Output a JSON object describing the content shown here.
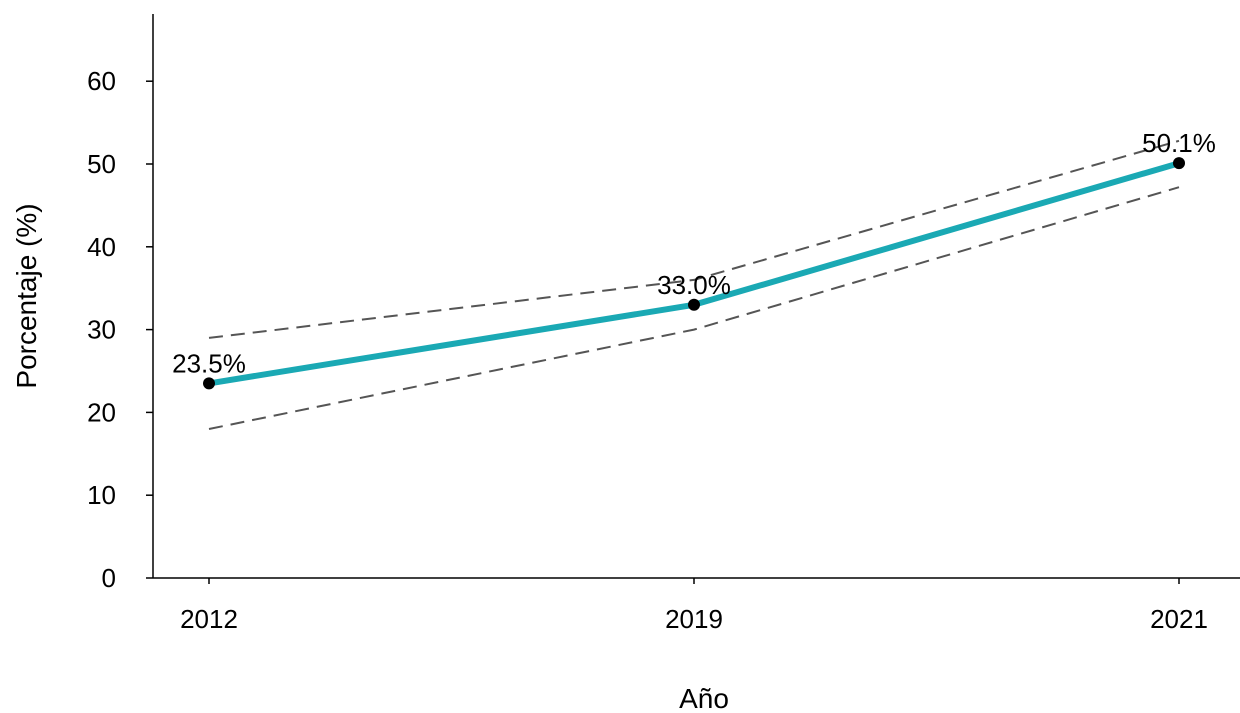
{
  "chart_data": {
    "type": "line",
    "title": "",
    "xlabel": "Año",
    "ylabel": "Porcentaje (%)",
    "x": [
      "2012",
      "2019",
      "2021"
    ],
    "series": [
      {
        "values": [
          23.5,
          33.0,
          50.1
        ],
        "labels": [
          "23.5%",
          "33.0%",
          "50.1%"
        ],
        "color": "#1aa9b4"
      }
    ],
    "confidence_band": {
      "upper": [
        29.0,
        36.0,
        52.8
      ],
      "lower": [
        18.0,
        30.0,
        47.2
      ],
      "color": "#555555",
      "style": "dashed"
    },
    "ylim": [
      0,
      65
    ],
    "yticks": [
      0,
      10,
      20,
      30,
      40,
      50,
      60
    ],
    "grid": false,
    "legend": "none"
  }
}
